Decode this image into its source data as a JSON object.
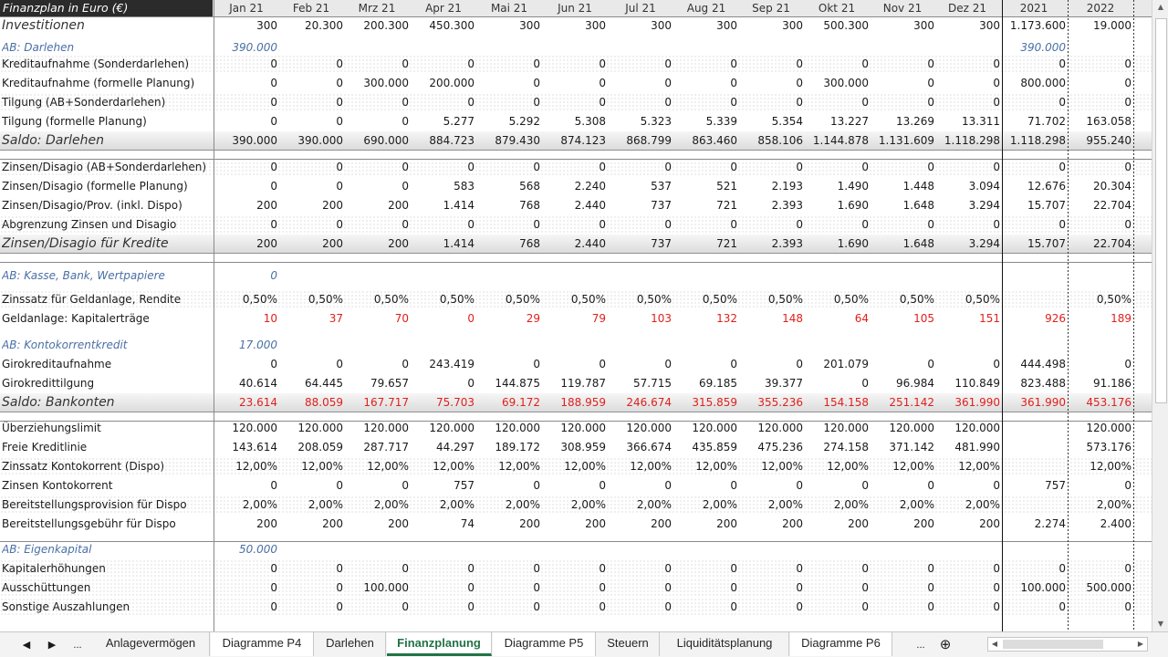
{
  "title": "Finanzplan in Euro (€)",
  "columns": [
    "Jan 21",
    "Feb 21",
    "Mrz 21",
    "Apr 21",
    "Mai 21",
    "Jun 21",
    "Jul 21",
    "Aug 21",
    "Sep 21",
    "Okt 21",
    "Nov 21",
    "Dez 21",
    "2021",
    "2022"
  ],
  "rows": [
    {
      "label": "Investitionen",
      "style": "big",
      "values": [
        "300",
        "20.300",
        "200.300",
        "450.300",
        "300",
        "300",
        "300",
        "300",
        "300",
        "500.300",
        "300",
        "300",
        "1.173.600",
        "19.000"
      ]
    },
    {
      "label": "AB: Darlehen",
      "style": "ab",
      "values": [
        "390.000",
        "",
        "",
        "",
        "",
        "",
        "",
        "",
        "",
        "",
        "",
        "",
        "390.000",
        ""
      ]
    },
    {
      "label": "Kreditaufnahme (Sonderdarlehen)",
      "style": "dotted",
      "values": [
        "0",
        "0",
        "0",
        "0",
        "0",
        "0",
        "0",
        "0",
        "0",
        "0",
        "0",
        "0",
        "0",
        "0"
      ]
    },
    {
      "label": "Kreditaufnahme (formelle Planung)",
      "style": "",
      "values": [
        "0",
        "0",
        "300.000",
        "200.000",
        "0",
        "0",
        "0",
        "0",
        "0",
        "300.000",
        "0",
        "0",
        "800.000",
        "0"
      ]
    },
    {
      "label": "Tilgung (AB+Sonderdarlehen)",
      "style": "dotted",
      "values": [
        "0",
        "0",
        "0",
        "0",
        "0",
        "0",
        "0",
        "0",
        "0",
        "0",
        "0",
        "0",
        "0",
        "0"
      ]
    },
    {
      "label": "Tilgung (formelle Planung)",
      "style": "",
      "values": [
        "0",
        "0",
        "0",
        "5.277",
        "5.292",
        "5.308",
        "5.323",
        "5.339",
        "5.354",
        "13.227",
        "13.269",
        "13.311",
        "71.702",
        "163.058"
      ]
    },
    {
      "label": "Saldo: Darlehen",
      "style": "saldo",
      "values": [
        "390.000",
        "390.000",
        "690.000",
        "884.723",
        "879.430",
        "874.123",
        "868.799",
        "863.460",
        "858.106",
        "1.144.878",
        "1.131.609",
        "1.118.298",
        "1.118.298",
        "955.240"
      ]
    },
    {
      "label": "Zinsen/Disagio (AB+Sonderdarlehen)",
      "style": "dotted",
      "values": [
        "0",
        "0",
        "0",
        "0",
        "0",
        "0",
        "0",
        "0",
        "0",
        "0",
        "0",
        "0",
        "0",
        "0"
      ]
    },
    {
      "label": "Zinsen/Disagio (formelle Planung)",
      "style": "",
      "values": [
        "0",
        "0",
        "0",
        "583",
        "568",
        "2.240",
        "537",
        "521",
        "2.193",
        "1.490",
        "1.448",
        "3.094",
        "12.676",
        "20.304"
      ]
    },
    {
      "label": "Zinsen/Disagio/Prov. (inkl. Dispo)",
      "style": "",
      "values": [
        "200",
        "200",
        "200",
        "1.414",
        "768",
        "2.440",
        "737",
        "721",
        "2.393",
        "1.690",
        "1.648",
        "3.294",
        "15.707",
        "22.704"
      ]
    },
    {
      "label": "Abgrenzung Zinsen und Disagio",
      "style": "dotted",
      "values": [
        "0",
        "0",
        "0",
        "0",
        "0",
        "0",
        "0",
        "0",
        "0",
        "0",
        "0",
        "0",
        "0",
        "0"
      ]
    },
    {
      "label": "Zinsen/Disagio für Kredite",
      "style": "saldo",
      "values": [
        "200",
        "200",
        "200",
        "1.414",
        "768",
        "2.440",
        "737",
        "721",
        "2.393",
        "1.690",
        "1.648",
        "3.294",
        "15.707",
        "22.704"
      ]
    },
    {
      "label": "AB: Kasse, Bank, Wertpapiere",
      "style": "ab",
      "values": [
        "0",
        "",
        "",
        "",
        "",
        "",
        "",
        "",
        "",
        "",
        "",
        "",
        "",
        ""
      ]
    },
    {
      "label": "Zinssatz für Geldanlage, Rendite",
      "style": "dotted",
      "values": [
        "0,50%",
        "0,50%",
        "0,50%",
        "0,50%",
        "0,50%",
        "0,50%",
        "0,50%",
        "0,50%",
        "0,50%",
        "0,50%",
        "0,50%",
        "0,50%",
        "",
        "0,50%"
      ]
    },
    {
      "label": "Geldanlage: Kapitalerträge",
      "style": "red",
      "values": [
        "10",
        "37",
        "70",
        "0",
        "29",
        "79",
        "103",
        "132",
        "148",
        "64",
        "105",
        "151",
        "926",
        "189"
      ]
    },
    {
      "label": "AB: Kontokorrentkredit",
      "style": "ab",
      "values": [
        "17.000",
        "",
        "",
        "",
        "",
        "",
        "",
        "",
        "",
        "",
        "",
        "",
        "",
        ""
      ]
    },
    {
      "label": "Girokreditaufnahme",
      "style": "",
      "values": [
        "0",
        "0",
        "0",
        "243.419",
        "0",
        "0",
        "0",
        "0",
        "0",
        "201.079",
        "0",
        "0",
        "444.498",
        "0"
      ]
    },
    {
      "label": "Girokredittilgung",
      "style": "",
      "values": [
        "40.614",
        "64.445",
        "79.657",
        "0",
        "144.875",
        "119.787",
        "57.715",
        "69.185",
        "39.377",
        "0",
        "96.984",
        "110.849",
        "823.488",
        "91.186"
      ]
    },
    {
      "label": "Saldo: Bankonten",
      "style": "saldo-red",
      "values": [
        "23.614",
        "88.059",
        "167.717",
        "75.703",
        "69.172",
        "188.959",
        "246.674",
        "315.859",
        "355.236",
        "154.158",
        "251.142",
        "361.990",
        "361.990",
        "453.176"
      ]
    },
    {
      "label": "Überziehungslimit",
      "style": "",
      "values": [
        "120.000",
        "120.000",
        "120.000",
        "120.000",
        "120.000",
        "120.000",
        "120.000",
        "120.000",
        "120.000",
        "120.000",
        "120.000",
        "120.000",
        "",
        "120.000"
      ]
    },
    {
      "label": "Freie Kreditlinie",
      "style": "",
      "values": [
        "143.614",
        "208.059",
        "287.717",
        "44.297",
        "189.172",
        "308.959",
        "366.674",
        "435.859",
        "475.236",
        "274.158",
        "371.142",
        "481.990",
        "",
        "573.176"
      ]
    },
    {
      "label": "Zinssatz Kontokorrent (Dispo)",
      "style": "dotted",
      "values": [
        "12,00%",
        "12,00%",
        "12,00%",
        "12,00%",
        "12,00%",
        "12,00%",
        "12,00%",
        "12,00%",
        "12,00%",
        "12,00%",
        "12,00%",
        "12,00%",
        "",
        "12,00%"
      ]
    },
    {
      "label": "Zinsen Kontokorrent",
      "style": "",
      "values": [
        "0",
        "0",
        "0",
        "757",
        "0",
        "0",
        "0",
        "0",
        "0",
        "0",
        "0",
        "0",
        "757",
        "0"
      ]
    },
    {
      "label": "Bereitstellungsprovision für Dispo",
      "style": "dotted",
      "values": [
        "2,00%",
        "2,00%",
        "2,00%",
        "2,00%",
        "2,00%",
        "2,00%",
        "2,00%",
        "2,00%",
        "2,00%",
        "2,00%",
        "2,00%",
        "2,00%",
        "",
        "2,00%"
      ]
    },
    {
      "label": "Bereitstellungsgebühr für Dispo",
      "style": "",
      "values": [
        "200",
        "200",
        "200",
        "74",
        "200",
        "200",
        "200",
        "200",
        "200",
        "200",
        "200",
        "200",
        "2.274",
        "2.400"
      ]
    },
    {
      "label": "AB: Eigenkapital",
      "style": "ab",
      "values": [
        "50.000",
        "",
        "",
        "",
        "",
        "",
        "",
        "",
        "",
        "",
        "",
        "",
        "",
        ""
      ]
    },
    {
      "label": "Kapitalerhöhungen",
      "style": "dotted",
      "values": [
        "0",
        "0",
        "0",
        "0",
        "0",
        "0",
        "0",
        "0",
        "0",
        "0",
        "0",
        "0",
        "0",
        "0"
      ]
    },
    {
      "label": "Ausschüttungen",
      "style": "dotted",
      "values": [
        "0",
        "0",
        "100.000",
        "0",
        "0",
        "0",
        "0",
        "0",
        "0",
        "0",
        "0",
        "0",
        "100.000",
        "500.000"
      ]
    },
    {
      "label": "Sonstige Auszahlungen",
      "style": "dotted",
      "values": [
        "0",
        "0",
        "0",
        "0",
        "0",
        "0",
        "0",
        "0",
        "0",
        "0",
        "0",
        "0",
        "0",
        "0"
      ]
    }
  ],
  "tabs": {
    "nav_prev": "◀",
    "nav_next": "▶",
    "more_left": "...",
    "more_right": "...",
    "add": "⊕",
    "items": [
      "Anlagevermögen",
      "Diagramme P4",
      "Darlehen",
      "Finanzplanung",
      "Diagramme P5",
      "Steuern",
      "Liquiditätsplanung",
      "Diagramme P6"
    ],
    "active": "Finanzplanung"
  }
}
